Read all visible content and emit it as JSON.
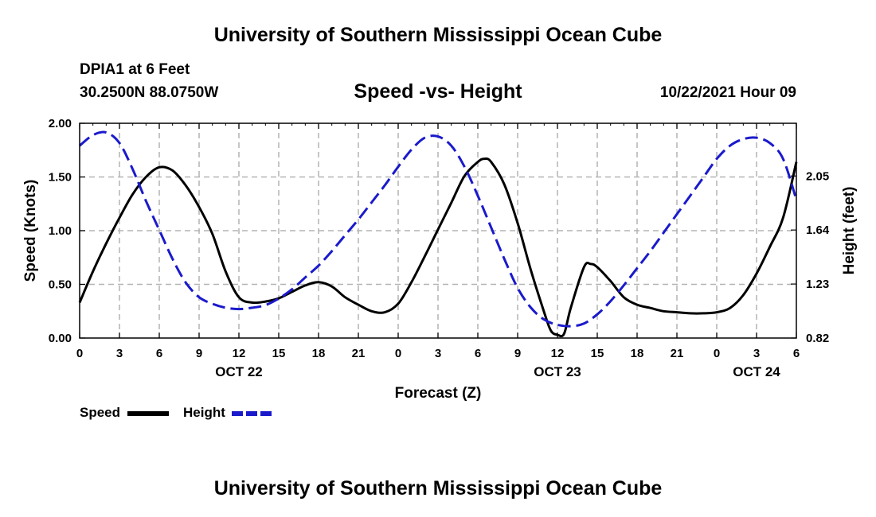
{
  "header": {
    "title": "University of Southern Mississippi Ocean Cube",
    "station": "DPIA1 at 6 Feet",
    "coords": "30.2500N  88.0750W",
    "subtitle": "Speed -vs- Height",
    "datetime": "10/22/2021 Hour 09"
  },
  "footer": {
    "title": "University of Southern Mississippi Ocean Cube"
  },
  "legend": {
    "speed_label": "Speed",
    "height_label": "Height"
  },
  "colors": {
    "speed": "#000000",
    "height": "#1a1acc",
    "grid": "#b4b4b4"
  },
  "chart_data": {
    "type": "line",
    "title": "Speed -vs- Height",
    "xlabel": "Forecast (Z)",
    "ylabel": "Speed (Knots)",
    "y2label": "Height (feet)",
    "xlim": [
      0,
      54
    ],
    "x_ticks": [
      0,
      3,
      6,
      9,
      12,
      15,
      18,
      21,
      24,
      27,
      30,
      33,
      36,
      39,
      42,
      45,
      48,
      51,
      54
    ],
    "x_tick_labels": [
      "0",
      "3",
      "6",
      "9",
      "12",
      "15",
      "18",
      "21",
      "0",
      "3",
      "6",
      "9",
      "12",
      "15",
      "18",
      "21",
      "0",
      "3",
      "6"
    ],
    "day_labels": [
      {
        "x": 12,
        "label": "OCT 22"
      },
      {
        "x": 36,
        "label": "OCT 23"
      },
      {
        "x": 51,
        "label": "OCT 24"
      }
    ],
    "ylim": [
      0,
      2.0
    ],
    "y_ticks": [
      0,
      0.5,
      1.0,
      1.5,
      2.0
    ],
    "y_tick_labels": [
      "0.00",
      "0.50",
      "1.00",
      "1.50",
      "2.00"
    ],
    "y2lim": [
      0.82,
      2.45
    ],
    "y2_ticks": [
      0.82,
      1.23,
      1.64,
      2.05
    ],
    "y2_tick_labels": [
      "0.82",
      "1.23",
      "1.64",
      "2.05"
    ],
    "grid": true,
    "series": [
      {
        "name": "Speed",
        "axis": "left",
        "style": "solid",
        "x": [
          0,
          1,
          2,
          3,
          4,
          5,
          6,
          7,
          8,
          9,
          10,
          11,
          12,
          13,
          14,
          15,
          16,
          17,
          18,
          19,
          20,
          21,
          22,
          23,
          24,
          25,
          26,
          27,
          28,
          29,
          30,
          30.5,
          31,
          32,
          33,
          34,
          35,
          35.5,
          36,
          36.5,
          37,
          38,
          38.5,
          39,
          40,
          41,
          42,
          43,
          44,
          45,
          46,
          47,
          48,
          49,
          50,
          51,
          52,
          53,
          54
        ],
        "y": [
          0.33,
          0.62,
          0.88,
          1.12,
          1.34,
          1.5,
          1.59,
          1.56,
          1.42,
          1.22,
          0.97,
          0.62,
          0.38,
          0.33,
          0.34,
          0.37,
          0.43,
          0.49,
          0.52,
          0.48,
          0.38,
          0.31,
          0.25,
          0.24,
          0.32,
          0.52,
          0.76,
          1.01,
          1.26,
          1.51,
          1.64,
          1.67,
          1.64,
          1.43,
          1.07,
          0.63,
          0.24,
          0.07,
          0.03,
          0.04,
          0.28,
          0.66,
          0.69,
          0.66,
          0.53,
          0.38,
          0.31,
          0.28,
          0.25,
          0.24,
          0.23,
          0.23,
          0.24,
          0.28,
          0.4,
          0.6,
          0.85,
          1.12,
          1.64
        ]
      },
      {
        "name": "Height",
        "axis": "right",
        "style": "dashed",
        "x": [
          0,
          1,
          2,
          3,
          4,
          5,
          6,
          7,
          8,
          9,
          10,
          11,
          12,
          13,
          14,
          15,
          16,
          17,
          18,
          19,
          20,
          21,
          22,
          23,
          24,
          25,
          26,
          27,
          28,
          29,
          30,
          31,
          32,
          33,
          34,
          35,
          36,
          37,
          38,
          39,
          40,
          41,
          42,
          43,
          44,
          45,
          46,
          47,
          48,
          49,
          50,
          51,
          52,
          53,
          54
        ],
        "y": [
          2.28,
          2.36,
          2.38,
          2.3,
          2.1,
          1.86,
          1.64,
          1.42,
          1.24,
          1.13,
          1.08,
          1.05,
          1.04,
          1.05,
          1.07,
          1.12,
          1.19,
          1.28,
          1.37,
          1.48,
          1.6,
          1.72,
          1.85,
          1.98,
          2.12,
          2.25,
          2.34,
          2.35,
          2.28,
          2.12,
          1.9,
          1.66,
          1.42,
          1.2,
          1.05,
          0.96,
          0.92,
          0.91,
          0.93,
          1.0,
          1.1,
          1.22,
          1.35,
          1.48,
          1.62,
          1.76,
          1.9,
          2.04,
          2.18,
          2.28,
          2.33,
          2.34,
          2.3,
          2.18,
          1.87
        ]
      }
    ]
  }
}
